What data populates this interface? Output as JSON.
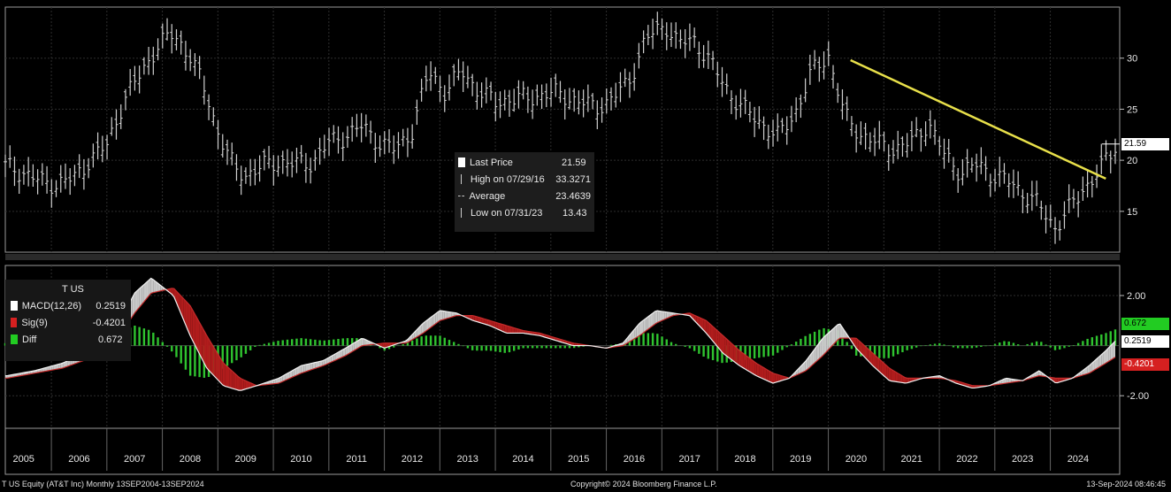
{
  "chart_data": [
    {
      "type": "line",
      "panel": "price",
      "ylim": [
        11,
        35
      ],
      "yticks": [
        15,
        20,
        25,
        30
      ],
      "ytick_labels": [
        "15",
        "20",
        "25",
        "30"
      ],
      "series": [
        {
          "x": [
            2004.7,
            2005.0,
            2005.3,
            2005.6,
            2005.9,
            2006.2,
            2006.5,
            2006.8,
            2007.1,
            2007.4,
            2007.7,
            2008.0,
            2008.3,
            2008.5,
            2008.8,
            2009.0,
            2009.3,
            2009.6,
            2009.9,
            2010.2,
            2010.5,
            2010.8,
            2011.1,
            2011.4,
            2011.7,
            2012.0,
            2012.3,
            2012.6,
            2012.9,
            2013.2,
            2013.5,
            2013.8,
            2014.1,
            2014.4,
            2014.7,
            2015.0,
            2015.3,
            2015.6,
            2015.9,
            2016.2,
            2016.57,
            2016.8,
            2017.1,
            2017.4,
            2017.7,
            2018.0,
            2018.3,
            2018.6,
            2018.9,
            2019.2,
            2019.5,
            2019.8,
            2020.1,
            2020.4,
            2020.7,
            2021.0,
            2021.3,
            2021.6,
            2021.9,
            2022.2,
            2022.5,
            2022.8,
            2023.1,
            2023.3,
            2023.58,
            2023.8,
            2024.1,
            2024.4,
            2024.7
          ],
          "y": [
            19.4,
            18.8,
            17.9,
            17.7,
            18.2,
            20.1,
            21.4,
            25.8,
            28.4,
            31.1,
            32.4,
            30.2,
            26.4,
            22.8,
            19.1,
            18.6,
            19.4,
            19.9,
            19.6,
            19.8,
            21.7,
            22.4,
            23.3,
            21.8,
            21.0,
            22.9,
            28.7,
            26.7,
            28.7,
            26.8,
            25.6,
            26.1,
            26.0,
            26.6,
            26.4,
            25.8,
            25.1,
            26.0,
            27.6,
            31.8,
            33.3,
            31.4,
            31.8,
            29.4,
            26.7,
            24.9,
            23.6,
            22.3,
            24.6,
            28.6,
            30.3,
            24.2,
            22.5,
            21.6,
            21.1,
            21.8,
            23.7,
            20.4,
            18.8,
            19.6,
            18.4,
            17.8,
            16.4,
            15.6,
            13.4,
            14.9,
            17.2,
            19.1,
            21.59
          ]
        }
      ],
      "annotations": [
        {
          "type": "trendline",
          "x": [
            2019.9,
            2024.5
          ],
          "y": [
            29.8,
            18.2
          ],
          "color": "#e8e04a"
        }
      ],
      "legend": [
        {
          "label": "Last Price",
          "value": "21.59"
        },
        {
          "label": "High on 07/29/16",
          "value": "33.3271"
        },
        {
          "label": "Average",
          "value": "23.4639"
        },
        {
          "label": "Low on 07/31/23",
          "value": "13.43"
        }
      ],
      "last_price_tag": "21.59"
    },
    {
      "type": "line",
      "panel": "macd",
      "title": "T US",
      "ylim": [
        -3.3,
        3.2
      ],
      "yticks": [
        2,
        -2
      ],
      "ytick_labels": [
        "2.00",
        "-2.00"
      ],
      "series": [
        {
          "name": "MACD(12,26)",
          "color": "#d8d8d8",
          "x": [
            2004.7,
            2005.2,
            2005.7,
            2006.2,
            2006.7,
            2007.0,
            2007.3,
            2007.7,
            2008.0,
            2008.3,
            2008.6,
            2008.9,
            2009.2,
            2009.6,
            2010.0,
            2010.4,
            2010.8,
            2011.1,
            2011.5,
            2011.9,
            2012.2,
            2012.5,
            2012.8,
            2013.1,
            2013.4,
            2013.7,
            2014.0,
            2014.3,
            2014.6,
            2014.9,
            2015.2,
            2015.5,
            2015.8,
            2016.1,
            2016.4,
            2016.7,
            2017.0,
            2017.3,
            2017.6,
            2017.9,
            2018.2,
            2018.5,
            2018.8,
            2019.1,
            2019.4,
            2019.7,
            2020.0,
            2020.3,
            2020.6,
            2020.9,
            2021.2,
            2021.5,
            2021.8,
            2022.1,
            2022.4,
            2022.7,
            2023.0,
            2023.3,
            2023.6,
            2023.9,
            2024.2,
            2024.5,
            2024.7
          ],
          "y": [
            -1.2,
            -1.0,
            -0.7,
            -0.2,
            0.8,
            2.1,
            2.7,
            2.0,
            0.4,
            -0.9,
            -1.6,
            -1.8,
            -1.6,
            -1.3,
            -0.8,
            -0.6,
            -0.1,
            0.3,
            -0.1,
            0.2,
            0.9,
            1.4,
            1.3,
            1.0,
            0.8,
            0.5,
            0.5,
            0.4,
            0.2,
            0.0,
            0.0,
            -0.1,
            0.1,
            0.9,
            1.4,
            1.3,
            1.2,
            0.5,
            -0.3,
            -0.8,
            -1.2,
            -1.5,
            -1.3,
            -0.6,
            0.3,
            0.9,
            -0.1,
            -0.8,
            -1.4,
            -1.5,
            -1.3,
            -1.2,
            -1.5,
            -1.7,
            -1.6,
            -1.3,
            -1.4,
            -1.0,
            -1.5,
            -1.3,
            -0.8,
            -0.2,
            0.2519
          ]
        },
        {
          "name": "Sig(9)",
          "color": "#c42b2b",
          "x": [
            2004.7,
            2005.2,
            2005.7,
            2006.2,
            2006.7,
            2007.0,
            2007.3,
            2007.7,
            2008.0,
            2008.3,
            2008.6,
            2008.9,
            2009.2,
            2009.6,
            2010.0,
            2010.4,
            2010.8,
            2011.1,
            2011.5,
            2011.9,
            2012.2,
            2012.5,
            2012.8,
            2013.1,
            2013.4,
            2013.7,
            2014.0,
            2014.3,
            2014.6,
            2014.9,
            2015.2,
            2015.5,
            2015.8,
            2016.1,
            2016.4,
            2016.7,
            2017.0,
            2017.3,
            2017.6,
            2017.9,
            2018.2,
            2018.5,
            2018.8,
            2019.1,
            2019.4,
            2019.7,
            2020.0,
            2020.3,
            2020.6,
            2020.9,
            2021.2,
            2021.5,
            2021.8,
            2022.1,
            2022.4,
            2022.7,
            2023.0,
            2023.3,
            2023.6,
            2023.9,
            2024.2,
            2024.5,
            2024.7
          ],
          "y": [
            -1.3,
            -1.1,
            -0.9,
            -0.5,
            0.3,
            1.3,
            2.1,
            2.3,
            1.6,
            0.4,
            -0.7,
            -1.3,
            -1.6,
            -1.5,
            -1.1,
            -0.8,
            -0.4,
            0.0,
            0.1,
            0.1,
            0.5,
            1.0,
            1.2,
            1.2,
            1.0,
            0.8,
            0.6,
            0.5,
            0.3,
            0.1,
            0.0,
            -0.1,
            0.0,
            0.4,
            0.9,
            1.2,
            1.3,
            1.0,
            0.4,
            -0.2,
            -0.7,
            -1.1,
            -1.3,
            -1.0,
            -0.4,
            0.3,
            0.3,
            -0.3,
            -0.9,
            -1.3,
            -1.3,
            -1.3,
            -1.4,
            -1.6,
            -1.6,
            -1.5,
            -1.4,
            -1.2,
            -1.3,
            -1.3,
            -1.1,
            -0.7,
            -0.4201
          ]
        },
        {
          "name": "Diff",
          "color": "#2fc42f",
          "x": [
            2004.7,
            2005.2,
            2005.7,
            2006.2,
            2006.7,
            2007.0,
            2007.3,
            2007.7,
            2008.0,
            2008.3,
            2008.6,
            2008.9,
            2009.2,
            2009.6,
            2010.0,
            2010.4,
            2010.8,
            2011.1,
            2011.5,
            2011.9,
            2012.2,
            2012.5,
            2012.8,
            2013.1,
            2013.4,
            2013.7,
            2014.0,
            2014.3,
            2014.6,
            2014.9,
            2015.2,
            2015.5,
            2015.8,
            2016.1,
            2016.4,
            2016.7,
            2017.0,
            2017.3,
            2017.6,
            2017.9,
            2018.2,
            2018.5,
            2018.8,
            2019.1,
            2019.4,
            2019.7,
            2020.0,
            2020.3,
            2020.6,
            2020.9,
            2021.2,
            2021.5,
            2021.8,
            2022.1,
            2022.4,
            2022.7,
            2023.0,
            2023.3,
            2023.6,
            2023.9,
            2024.2,
            2024.5,
            2024.7
          ],
          "y": [
            0.1,
            0.1,
            0.2,
            0.3,
            0.5,
            0.8,
            0.6,
            -0.3,
            -1.2,
            -1.3,
            -0.9,
            -0.5,
            0.0,
            0.2,
            0.3,
            0.2,
            0.3,
            0.3,
            -0.2,
            0.1,
            0.4,
            0.4,
            0.1,
            -0.2,
            -0.2,
            -0.3,
            -0.1,
            -0.1,
            -0.1,
            -0.1,
            0.0,
            0.0,
            0.1,
            0.5,
            0.5,
            0.1,
            -0.1,
            -0.5,
            -0.7,
            -0.6,
            -0.5,
            -0.4,
            0.0,
            0.4,
            0.7,
            0.6,
            -0.4,
            -0.5,
            -0.5,
            -0.2,
            0.0,
            0.1,
            -0.1,
            -0.1,
            0.0,
            0.2,
            0.0,
            0.2,
            -0.2,
            0.0,
            0.3,
            0.5,
            0.672
          ]
        }
      ],
      "legend": [
        {
          "label": "MACD(12,26)",
          "value": "0.2519",
          "color": "#ffffff"
        },
        {
          "label": "Sig(9)",
          "value": "-0.4201",
          "color": "#d62020"
        },
        {
          "label": "Diff",
          "value": "0.672",
          "color": "#22cc22"
        }
      ],
      "value_tags": [
        {
          "value": "0.672",
          "color": "#22cc22"
        },
        {
          "value": "0.2519",
          "color": "#ffffff"
        },
        {
          "value": "-0.4201",
          "color": "#d62020"
        }
      ]
    }
  ],
  "x_axis": {
    "labels": [
      "2005",
      "2006",
      "2007",
      "2008",
      "2009",
      "2010",
      "2011",
      "2012",
      "2013",
      "2014",
      "2015",
      "2016",
      "2017",
      "2018",
      "2019",
      "2020",
      "2021",
      "2022",
      "2023",
      "2024"
    ]
  },
  "footer": {
    "left": "T US Equity (AT&T Inc)  Monthly 13SEP2004-13SEP2024",
    "mid": "Copyright© 2024 Bloomberg Finance L.P.",
    "right": "13-Sep-2024 08:46:45"
  },
  "colors": {
    "background": "#000000",
    "trendline": "#e8e04a",
    "grid": "#2e2e2e"
  }
}
